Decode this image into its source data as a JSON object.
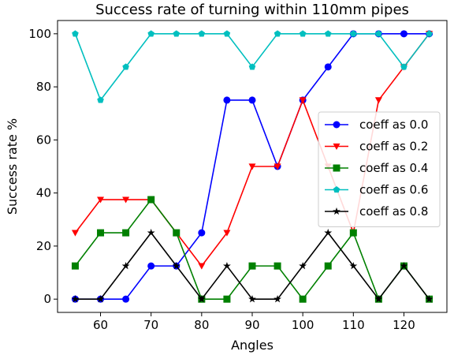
{
  "chart_data": {
    "type": "line",
    "title": "Success rate of turning within 110mm pipes",
    "xlabel": "Angles",
    "ylabel": "Success rate %",
    "x": [
      55,
      60,
      65,
      70,
      75,
      80,
      85,
      90,
      95,
      100,
      105,
      110,
      115,
      120,
      125
    ],
    "xlim": [
      51.5,
      128.5
    ],
    "ylim": [
      -5,
      105
    ],
    "xticks": [
      60,
      70,
      80,
      90,
      100,
      110,
      120
    ],
    "yticks": [
      0,
      20,
      40,
      60,
      80,
      100
    ],
    "grid": false,
    "legend_position": "center-right",
    "series": [
      {
        "name": "coeff as 0.0",
        "color": "#0000ff",
        "marker": "circle",
        "values": [
          0,
          0,
          0,
          12.5,
          12.5,
          25,
          75,
          75,
          50,
          75,
          87.5,
          100,
          100,
          100,
          100
        ]
      },
      {
        "name": "coeff as 0.2",
        "color": "#ff0000",
        "marker": "triangle-down",
        "values": [
          25,
          37.5,
          37.5,
          37.5,
          25,
          12.5,
          25,
          50,
          50,
          75,
          50,
          25,
          75,
          87.5,
          100
        ]
      },
      {
        "name": "coeff as 0.4",
        "color": "#008000",
        "marker": "square",
        "values": [
          12.5,
          25,
          25,
          37.5,
          25,
          0,
          0,
          12.5,
          12.5,
          0,
          12.5,
          25,
          0,
          12.5,
          0
        ]
      },
      {
        "name": "coeff as 0.6",
        "color": "#00bfbf",
        "marker": "pentagon",
        "values": [
          100,
          75,
          87.5,
          100,
          100,
          100,
          100,
          87.5,
          100,
          100,
          100,
          100,
          100,
          87.5,
          100
        ]
      },
      {
        "name": "coeff as 0.8",
        "color": "#000000",
        "marker": "star",
        "values": [
          0,
          0,
          12.5,
          25,
          12.5,
          0,
          12.5,
          0,
          0,
          12.5,
          25,
          12.5,
          0,
          12.5,
          0
        ]
      }
    ]
  }
}
